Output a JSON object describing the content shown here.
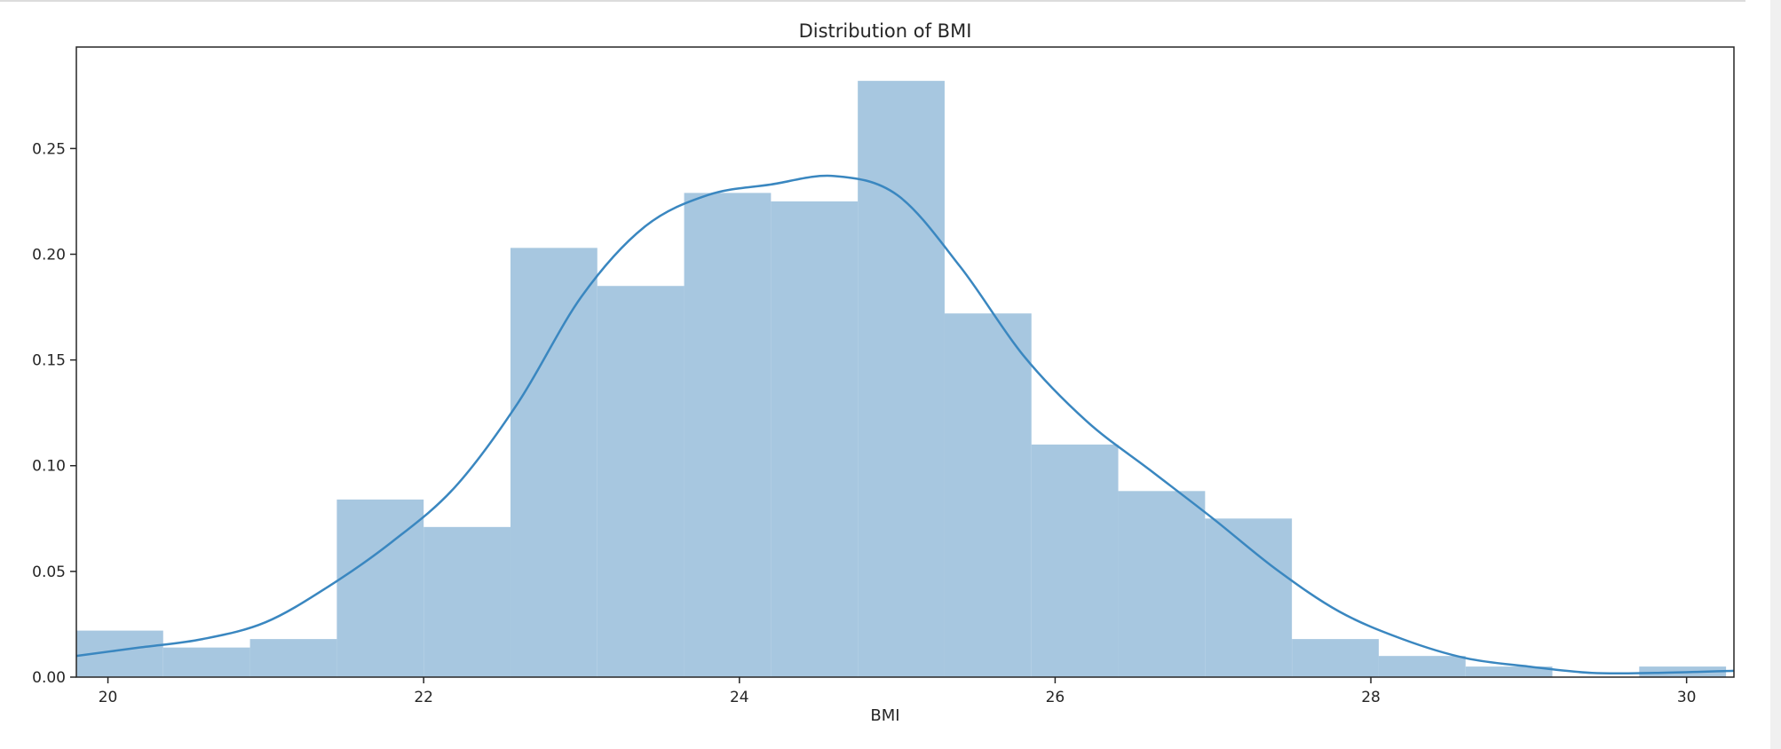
{
  "chart_data": {
    "type": "bar",
    "title": "Distribution of BMI",
    "xlabel": "BMI",
    "ylabel": "",
    "xlim": [
      19.8,
      30.3
    ],
    "ylim": [
      0,
      0.298
    ],
    "xticks": [
      20,
      22,
      24,
      26,
      28,
      30
    ],
    "yticks": [
      0.0,
      0.05,
      0.1,
      0.15,
      0.2,
      0.25
    ],
    "ytick_labels": [
      "0.00",
      "0.05",
      "0.10",
      "0.15",
      "0.20",
      "0.25"
    ],
    "grid": false,
    "legend": "none",
    "bar_color": "#a7c7e0",
    "line_color": "#3a87c0",
    "histogram": {
      "bin_edges": [
        19.8,
        20.35,
        20.9,
        21.45,
        22.0,
        22.55,
        23.1,
        23.65,
        24.2,
        24.75,
        25.3,
        25.85,
        26.4,
        26.95,
        27.5,
        28.05,
        28.6,
        29.15,
        29.7,
        30.25
      ],
      "density": [
        0.022,
        0.014,
        0.018,
        0.084,
        0.071,
        0.203,
        0.185,
        0.229,
        0.225,
        0.282,
        0.172,
        0.11,
        0.088,
        0.075,
        0.018,
        0.01,
        0.005,
        0.0,
        0.005
      ]
    },
    "kde": {
      "x": [
        19.8,
        20.2,
        20.6,
        21.0,
        21.4,
        21.8,
        22.2,
        22.6,
        23.0,
        23.4,
        23.8,
        24.2,
        24.6,
        25.0,
        25.4,
        25.8,
        26.2,
        26.6,
        27.0,
        27.4,
        27.8,
        28.2,
        28.6,
        29.0,
        29.4,
        29.8,
        30.3
      ],
      "y": [
        0.01,
        0.014,
        0.018,
        0.026,
        0.043,
        0.064,
        0.09,
        0.13,
        0.18,
        0.213,
        0.228,
        0.233,
        0.237,
        0.228,
        0.194,
        0.152,
        0.121,
        0.098,
        0.075,
        0.051,
        0.031,
        0.018,
        0.009,
        0.005,
        0.002,
        0.002,
        0.003
      ]
    }
  }
}
